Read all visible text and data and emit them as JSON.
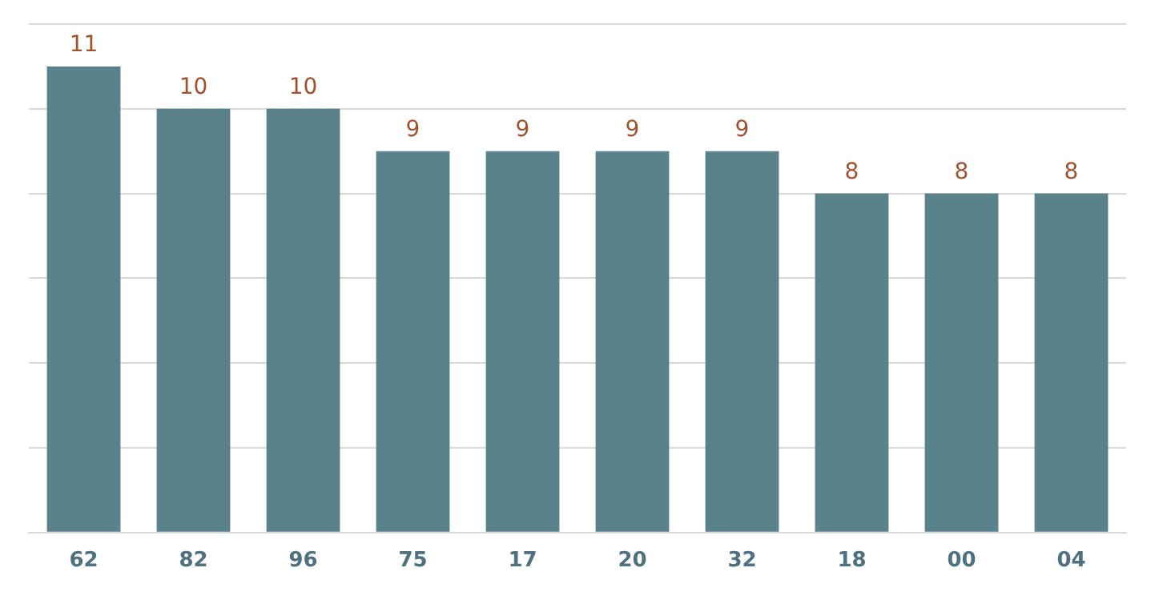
{
  "chart_data": {
    "type": "bar",
    "categories": [
      "62",
      "82",
      "96",
      "75",
      "17",
      "20",
      "32",
      "18",
      "00",
      "04"
    ],
    "values": [
      11,
      10,
      10,
      9,
      9,
      9,
      9,
      8,
      8,
      8
    ],
    "color": "#5a828b",
    "ylim": [
      0,
      12
    ],
    "yticks": [
      {
        "value": 0,
        "label": null
      },
      {
        "value": 2,
        "label": null
      },
      {
        "value": 4,
        "label": null
      },
      {
        "value": 6,
        "label": null
      },
      {
        "value": 8,
        "label": null
      },
      {
        "value": 10,
        "label": null
      },
      {
        "value": 12,
        "label": null
      }
    ],
    "grid": "y",
    "tick_labels": "x",
    "data_labels": true,
    "legend": false
  }
}
